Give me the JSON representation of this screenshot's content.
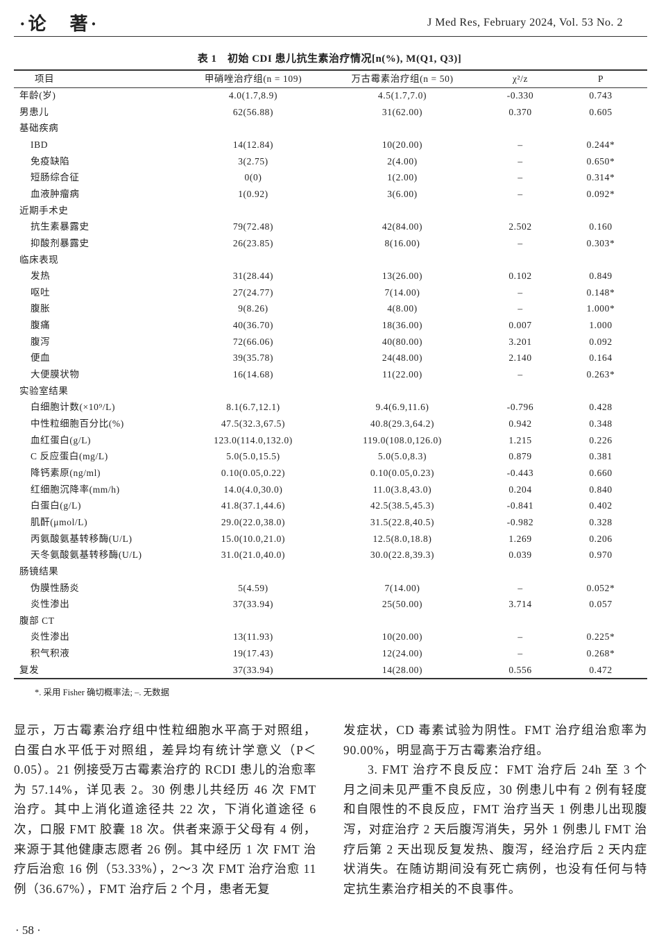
{
  "header": {
    "section": "·论　著·",
    "journal": "J Med Res, February 2024, Vol. 53 No. 2"
  },
  "table": {
    "title": "表 1　初始 CDI 患儿抗生素治疗情况[n(%), M(Q1, Q3)]",
    "columns": [
      "项目",
      "甲硝唑治疗组(n = 109)",
      "万古霉素治疗组(n = 50)",
      "χ²/z",
      "P"
    ],
    "sections": [
      {
        "label": "年龄(岁)",
        "cells": [
          "4.0(1.7,8.9)",
          "4.5(1.7,7.0)",
          "-0.330",
          "0.743"
        ]
      },
      {
        "label": "男患儿",
        "cells": [
          "62(56.88)",
          "31(62.00)",
          "0.370",
          "0.605"
        ]
      },
      {
        "label": "基础疾病",
        "items": [
          {
            "label": "IBD",
            "cells": [
              "14(12.84)",
              "10(20.00)",
              "–",
              "0.244*"
            ]
          },
          {
            "label": "免疫缺陷",
            "cells": [
              "3(2.75)",
              "2(4.00)",
              "–",
              "0.650*"
            ]
          },
          {
            "label": "短肠综合征",
            "cells": [
              "0(0)",
              "1(2.00)",
              "–",
              "0.314*"
            ]
          },
          {
            "label": "血液肿瘤病",
            "cells": [
              "1(0.92)",
              "3(6.00)",
              "–",
              "0.092*"
            ]
          }
        ]
      },
      {
        "label": "近期手术史",
        "items": [
          {
            "label": "抗生素暴露史",
            "cells": [
              "79(72.48)",
              "42(84.00)",
              "2.502",
              "0.160"
            ]
          },
          {
            "label": "抑酸剂暴露史",
            "cells": [
              "26(23.85)",
              "8(16.00)",
              "–",
              "0.303*"
            ]
          }
        ]
      },
      {
        "label": "临床表现",
        "items": [
          {
            "label": "发热",
            "cells": [
              "31(28.44)",
              "13(26.00)",
              "0.102",
              "0.849"
            ]
          },
          {
            "label": "呕吐",
            "cells": [
              "27(24.77)",
              "7(14.00)",
              "–",
              "0.148*"
            ]
          },
          {
            "label": "腹胀",
            "cells": [
              "9(8.26)",
              "4(8.00)",
              "–",
              "1.000*"
            ]
          },
          {
            "label": "腹痛",
            "cells": [
              "40(36.70)",
              "18(36.00)",
              "0.007",
              "1.000"
            ]
          },
          {
            "label": "腹泻",
            "cells": [
              "72(66.06)",
              "40(80.00)",
              "3.201",
              "0.092"
            ]
          },
          {
            "label": "便血",
            "cells": [
              "39(35.78)",
              "24(48.00)",
              "2.140",
              "0.164"
            ]
          },
          {
            "label": "大便膜状物",
            "cells": [
              "16(14.68)",
              "11(22.00)",
              "–",
              "0.263*"
            ]
          }
        ]
      },
      {
        "label": "实验室结果",
        "items": [
          {
            "label": "白细胞计数(×10⁹/L)",
            "cells": [
              "8.1(6.7,12.1)",
              "9.4(6.9,11.6)",
              "-0.796",
              "0.428"
            ]
          },
          {
            "label": "中性粒细胞百分比(%)",
            "cells": [
              "47.5(32.3,67.5)",
              "40.8(29.3,64.2)",
              "0.942",
              "0.348"
            ]
          },
          {
            "label": "血红蛋白(g/L)",
            "cells": [
              "123.0(114.0,132.0)",
              "119.0(108.0,126.0)",
              "1.215",
              "0.226"
            ]
          },
          {
            "label": "C 反应蛋白(mg/L)",
            "cells": [
              "5.0(5.0,15.5)",
              "5.0(5.0,8.3)",
              "0.879",
              "0.381"
            ]
          },
          {
            "label": "降钙素原(ng/ml)",
            "cells": [
              "0.10(0.05,0.22)",
              "0.10(0.05,0.23)",
              "-0.443",
              "0.660"
            ]
          },
          {
            "label": "红细胞沉降率(mm/h)",
            "cells": [
              "14.0(4.0,30.0)",
              "11.0(3.8,43.0)",
              "0.204",
              "0.840"
            ]
          },
          {
            "label": "白蛋白(g/L)",
            "cells": [
              "41.8(37.1,44.6)",
              "42.5(38.5,45.3)",
              "-0.841",
              "0.402"
            ]
          },
          {
            "label": "肌酐(μmol/L)",
            "cells": [
              "29.0(22.0,38.0)",
              "31.5(22.8,40.5)",
              "-0.982",
              "0.328"
            ]
          },
          {
            "label": "丙氨酸氨基转移酶(U/L)",
            "cells": [
              "15.0(10.0,21.0)",
              "12.5(8.0,18.8)",
              "1.269",
              "0.206"
            ]
          },
          {
            "label": "天冬氨酸氨基转移酶(U/L)",
            "cells": [
              "31.0(21.0,40.0)",
              "30.0(22.8,39.3)",
              "0.039",
              "0.970"
            ]
          }
        ]
      },
      {
        "label": "肠镜结果",
        "items": [
          {
            "label": "伪膜性肠炎",
            "cells": [
              "5(4.59)",
              "7(14.00)",
              "–",
              "0.052*"
            ]
          },
          {
            "label": "炎性渗出",
            "cells": [
              "37(33.94)",
              "25(50.00)",
              "3.714",
              "0.057"
            ]
          }
        ]
      },
      {
        "label": "腹部 CT",
        "items": [
          {
            "label": "炎性渗出",
            "cells": [
              "13(11.93)",
              "10(20.00)",
              "–",
              "0.225*"
            ]
          },
          {
            "label": "积气积液",
            "cells": [
              "19(17.43)",
              "12(24.00)",
              "–",
              "0.268*"
            ]
          }
        ]
      },
      {
        "label": "复发",
        "cells": [
          "37(33.94)",
          "14(28.00)",
          "0.556",
          "0.472"
        ]
      }
    ],
    "footnote": "*. 采用 Fisher 确切概率法; –. 无数据"
  },
  "body": {
    "left": [
      "显示，万古霉素治疗组中性粒细胞水平高于对照组，白蛋白水平低于对照组，差异均有统计学意义（P＜0.05）。21 例接受万古霉素治疗的 RCDI 患儿的治愈率为 57.14%，详见表 2。30 例患儿共经历 46 次 FMT 治疗。其中上消化道途径共 22 次，下消化道途径 6 次，口服 FMT 胶囊 18 次。供者来源于父母有 4 例，来源于其他健康志愿者 26 例。其中经历 1 次 FMT 治疗后治愈 16 例（53.33%），2～3 次 FMT 治疗治愈 11 例（36.67%），FMT 治疗后 2 个月，患者无复"
    ],
    "right": [
      "发症状，CD 毒素试验为阴性。FMT 治疗组治愈率为 90.00%，明显高于万古霉素治疗组。",
      "3. FMT 治疗不良反应：FMT 治疗后 24h 至 3 个月之间未见严重不良反应，30 例患儿中有 2 例有轻度和自限性的不良反应，FMT 治疗当天 1 例患儿出现腹泻，对症治疗 2 天后腹泻消失，另外 1 例患儿 FMT 治疗后第 2 天出现反复发热、腹泻，经治疗后 2 天内症状消失。在随访期间没有死亡病例，也没有任何与特定抗生素治疗相关的不良事件。"
    ]
  },
  "footer": {
    "page": "· 58 ·"
  }
}
